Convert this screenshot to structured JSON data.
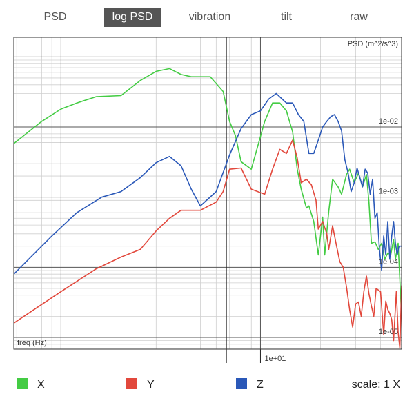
{
  "tabs": [
    {
      "label": "PSD",
      "active": false
    },
    {
      "label": "log PSD",
      "active": true
    },
    {
      "label": "vibration",
      "active": false
    },
    {
      "label": "tilt",
      "active": false
    },
    {
      "label": "raw",
      "active": false
    }
  ],
  "legend": {
    "items": [
      {
        "label": "X",
        "color": "#44cc44"
      },
      {
        "label": "Y",
        "color": "#e2483c"
      },
      {
        "label": "Z",
        "color": "#2a58b8"
      }
    ],
    "scale_label": "scale: 1 X"
  },
  "chart_data": {
    "type": "line",
    "title": "",
    "xlabel": "freq (Hz)",
    "ylabel": "PSD (m^2/s^3)",
    "x_scale": "log",
    "y_scale": "log",
    "xlim": [
      0.58,
      51
    ],
    "ylim": [
      6.8e-06,
      0.19
    ],
    "grid": true,
    "x_ticks": [
      {
        "value": 10,
        "label": "1e+01"
      }
    ],
    "y_ticks": [
      {
        "value": 0.01,
        "label": "1e-02"
      },
      {
        "value": 0.001,
        "label": "1e-03"
      },
      {
        "value": 0.0001,
        "label": "1e-04"
      },
      {
        "value": 1e-05,
        "label": "1e-05"
      }
    ],
    "series": [
      {
        "name": "X",
        "color": "#44cc44",
        "x": [
          0.58,
          0.8,
          1.0,
          1.2,
          1.5,
          2.0,
          2.5,
          3.0,
          3.5,
          4.0,
          4.5,
          5.0,
          5.6,
          6.5,
          7.0,
          7.5,
          8.0,
          9.0,
          10.5,
          11.5,
          12.5,
          13.5,
          14.5,
          15.3,
          16.0,
          17.0,
          17.5,
          18.5,
          19.5,
          20.5,
          21.0,
          22.0,
          23.0,
          24.5,
          25.5,
          27.0,
          28.0,
          29.5,
          31.0,
          32.5,
          34.0,
          35.0,
          36.0,
          37.5,
          39.0,
          40.5,
          42.0,
          43.5,
          45.0,
          46.5,
          47.5,
          49.0,
          51.0
        ],
        "y": [
          0.0058,
          0.012,
          0.018,
          0.022,
          0.027,
          0.028,
          0.046,
          0.062,
          0.068,
          0.056,
          0.052,
          0.052,
          0.052,
          0.032,
          0.012,
          0.0075,
          0.0032,
          0.0025,
          0.012,
          0.022,
          0.022,
          0.017,
          0.0085,
          0.0025,
          0.0013,
          0.0007,
          0.00075,
          0.00045,
          0.00015,
          0.00052,
          0.00015,
          0.00062,
          0.0018,
          0.0014,
          0.0011,
          0.0021,
          0.0025,
          0.0016,
          0.0022,
          0.0014,
          0.0021,
          0.00085,
          0.00022,
          0.00023,
          0.00018,
          0.00022,
          0.00013,
          0.00016,
          0.00015,
          0.00025,
          0.00013,
          0.00022,
          2e-05
        ]
      },
      {
        "name": "Y",
        "color": "#e2483c",
        "x": [
          0.58,
          1.0,
          1.5,
          2.0,
          2.5,
          3.0,
          3.5,
          4.0,
          4.5,
          5.0,
          6.0,
          6.5,
          7.0,
          8.0,
          9.0,
          10.5,
          11.5,
          12.5,
          13.5,
          14.5,
          15.3,
          16.0,
          17.0,
          18.0,
          19.0,
          19.5,
          20.5,
          21.5,
          22.0,
          23.0,
          24.0,
          25.0,
          26.0,
          27.0,
          28.0,
          29.0,
          30.0,
          31.0,
          32.0,
          33.0,
          34.0,
          35.0,
          36.0,
          37.0,
          38.0,
          40.0,
          41.5,
          42.5,
          43.5,
          44.5,
          45.5,
          46.5,
          48.0,
          49.0,
          50.0,
          51.0
        ],
        "y": [
          1.6e-05,
          4.5e-05,
          9.5e-05,
          0.00014,
          0.00018,
          0.00033,
          0.0005,
          0.00065,
          0.00065,
          0.00065,
          0.00085,
          0.0012,
          0.0025,
          0.0026,
          0.0013,
          0.0011,
          0.0025,
          0.0048,
          0.0042,
          0.0065,
          0.0036,
          0.0016,
          0.0018,
          0.0015,
          0.0009,
          0.00035,
          0.00045,
          0.0003,
          0.00018,
          0.00039,
          0.00021,
          0.00012,
          0.0001,
          5.2e-05,
          2.5e-05,
          1.4e-05,
          3e-05,
          3.2e-05,
          2e-05,
          4.5e-05,
          7.5e-05,
          4.2e-05,
          2.8e-05,
          2e-05,
          5e-05,
          4.5e-05,
          1.1e-05,
          3.3e-05,
          2.5e-05,
          2.2e-05,
          1.8e-05,
          9e-06,
          4.5e-05,
          1.2e-05,
          7e-06,
          5.5e-05
        ]
      },
      {
        "name": "Z",
        "color": "#2a58b8",
        "x": [
          0.58,
          0.9,
          1.2,
          1.6,
          2.0,
          2.5,
          3.0,
          3.5,
          4.0,
          4.5,
          5.0,
          6.0,
          7.0,
          8.0,
          9.0,
          10.0,
          11.0,
          12.0,
          13.5,
          14.5,
          15.5,
          16.5,
          17.5,
          18.5,
          19.5,
          20.5,
          21.5,
          22.5,
          23.5,
          24.5,
          25.5,
          26.5,
          27.5,
          28.5,
          29.5,
          30.5,
          31.5,
          32.5,
          33.5,
          34.5,
          35.5,
          36.5,
          37.5,
          38.5,
          39.5,
          40.5,
          41.5,
          42.5,
          43.5,
          44.5,
          45.5,
          46.5,
          47.5,
          48.5,
          49.5,
          51.0
        ],
        "y": [
          8e-05,
          0.00028,
          0.0006,
          0.001,
          0.0012,
          0.0019,
          0.0031,
          0.0038,
          0.0028,
          0.0013,
          0.00075,
          0.0012,
          0.004,
          0.0095,
          0.015,
          0.017,
          0.025,
          0.03,
          0.022,
          0.022,
          0.015,
          0.012,
          0.0042,
          0.0042,
          0.0065,
          0.01,
          0.012,
          0.014,
          0.015,
          0.012,
          0.0088,
          0.0034,
          0.0022,
          0.0012,
          0.0016,
          0.0026,
          0.0019,
          0.0014,
          0.0025,
          0.0022,
          0.0011,
          0.0018,
          0.0005,
          0.0006,
          0.00018,
          9e-05,
          0.00028,
          0.00015,
          0.00045,
          0.00013,
          0.00028,
          0.00045,
          0.00022,
          0.00015,
          0.0002,
          0.0002
        ]
      }
    ]
  }
}
